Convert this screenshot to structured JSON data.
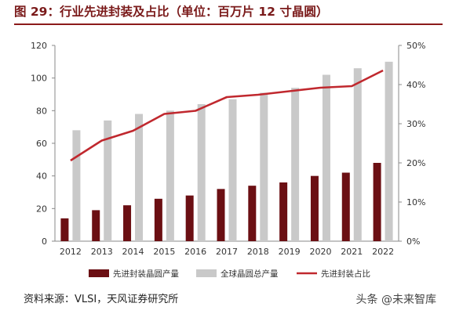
{
  "title": "图 29：行业先进封装及占比（单位：百万片 12 寸晶圆）",
  "source": "资料来源：VLSI，天风证券研究所",
  "watermark": "头条 @未来智库",
  "colors": {
    "advanced": "#6b0f13",
    "total": "#c9c9c9",
    "ratio": "#c0282e",
    "title": "#7a1a1a"
  },
  "chart_data": {
    "type": "bar",
    "categories": [
      "2012",
      "2013",
      "2014",
      "2015",
      "2016",
      "2017",
      "2018",
      "2019",
      "2020",
      "2021",
      "2022"
    ],
    "series": [
      {
        "name": "先进封装晶圆产量",
        "type": "bar",
        "axis": "left",
        "values": [
          14,
          19,
          22,
          26,
          28,
          32,
          34,
          36,
          40,
          42,
          48
        ]
      },
      {
        "name": "全球晶圆总产量",
        "type": "bar",
        "axis": "left",
        "values": [
          68,
          74,
          78,
          80,
          84,
          87,
          91,
          94,
          102,
          106,
          110
        ]
      },
      {
        "name": "先进封装占比",
        "type": "line",
        "axis": "right",
        "values": [
          20.6,
          25.7,
          28.2,
          32.5,
          33.3,
          36.8,
          37.4,
          38.3,
          39.2,
          39.6,
          43.6
        ]
      }
    ],
    "ylim_left": [
      0,
      120
    ],
    "yticks_left": [
      "0",
      "20",
      "40",
      "60",
      "80",
      "100",
      "120"
    ],
    "ylim_right": [
      0,
      50
    ],
    "yticks_right": [
      "0%",
      "10%",
      "20%",
      "30%",
      "40%",
      "50%"
    ],
    "legend_position": "bottom"
  }
}
